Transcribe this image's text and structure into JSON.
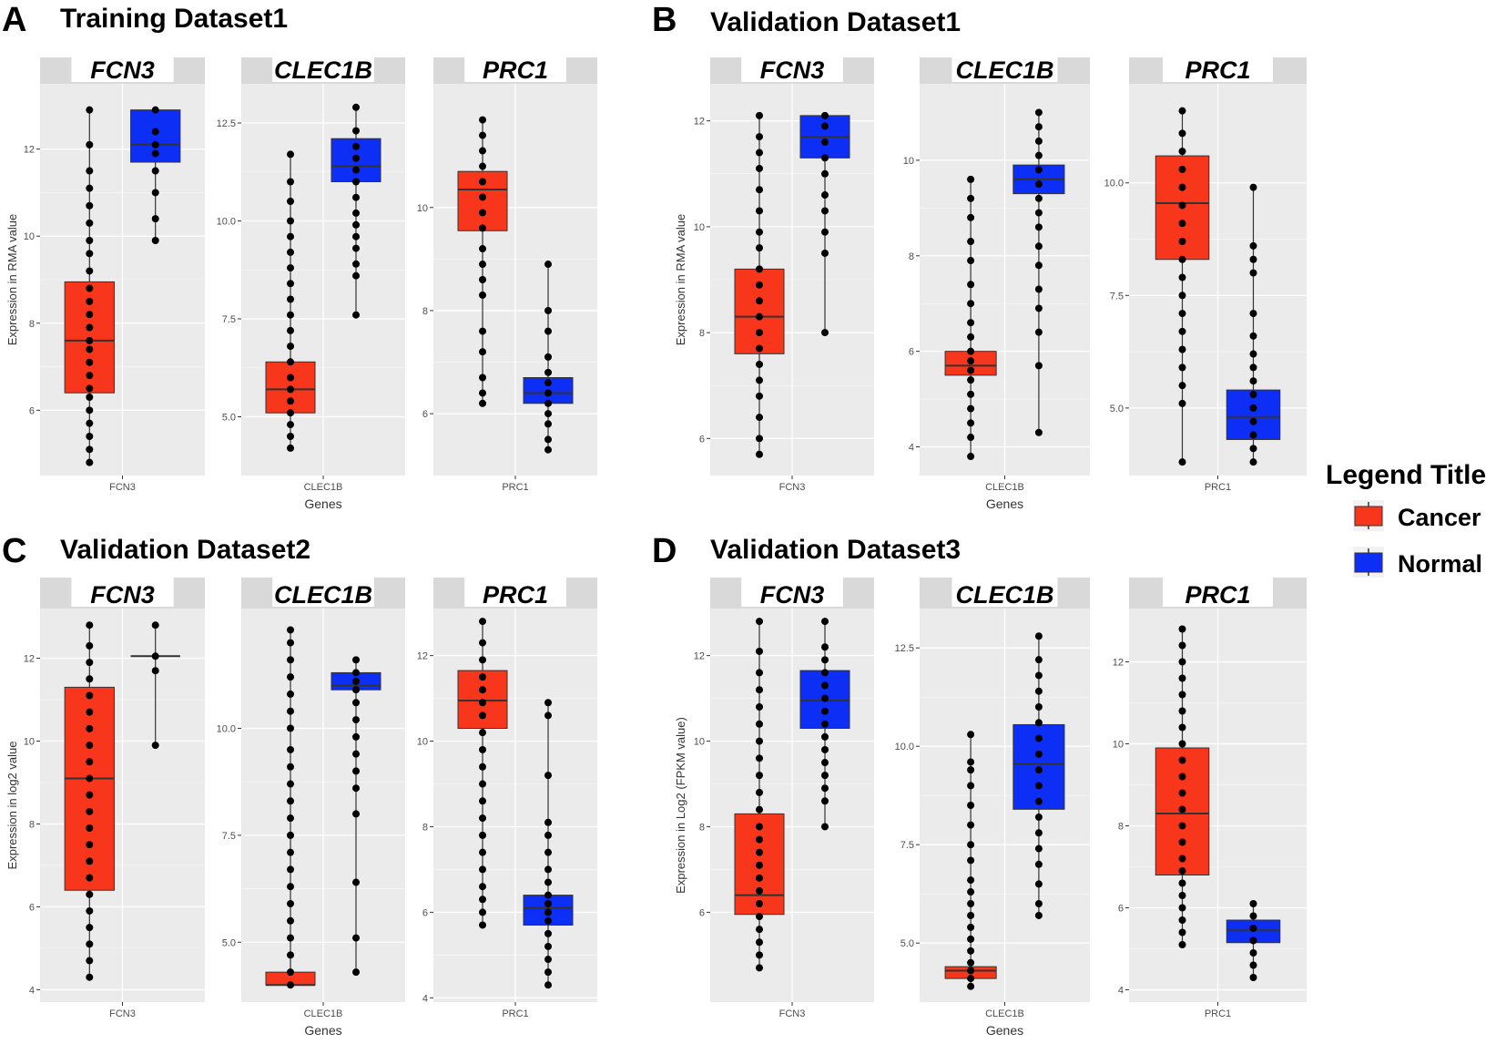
{
  "legend": {
    "title": "Legend Title",
    "items": [
      {
        "label": "Cancer",
        "color": "#f8361c"
      },
      {
        "label": "Normal",
        "color": "#0c2ef5"
      }
    ]
  },
  "colors": {
    "panel_bg": "#ebebeb",
    "strip_bg": "#d9d9d9",
    "grid": "#ffffff",
    "whisker": "#333333",
    "point": "#000000"
  },
  "panels": [
    {
      "letter": "A",
      "title": "Training Dataset1",
      "ylabel": "Expression in RMA value",
      "xlabel": "Genes"
    },
    {
      "letter": "B",
      "title": "Validation Dataset1",
      "ylabel": "Expression in RMA value",
      "xlabel": "Genes"
    },
    {
      "letter": "C",
      "title": "Validation Dataset2",
      "ylabel": "Expression in log2 value",
      "xlabel": "Genes"
    },
    {
      "letter": "D",
      "title": "Validation Dataset3",
      "ylabel": "Expression in Log2 (FPKM value)",
      "xlabel": "Genes"
    }
  ],
  "chart_data": [
    {
      "type": "box",
      "panel": "A",
      "title": "Training Dataset1",
      "ylabel": "Expression in RMA value",
      "xlabel": "Genes",
      "genes": [
        {
          "name": "FCN3",
          "ylim": [
            4.5,
            13.5
          ],
          "ticks": [
            6,
            8,
            10,
            12
          ],
          "tick_labels": [
            "6",
            "8",
            "10",
            "12"
          ],
          "cancer": {
            "q1": 6.4,
            "median": 7.6,
            "q3": 8.95,
            "min": 4.8,
            "max": 12.9,
            "points": [
              4.8,
              5.1,
              5.4,
              5.7,
              6.0,
              6.3,
              6.5,
              6.8,
              7.1,
              7.4,
              7.6,
              7.9,
              8.2,
              8.5,
              8.8,
              9.2,
              9.6,
              9.9,
              10.3,
              10.7,
              11.1,
              11.5,
              12.1,
              12.9
            ]
          },
          "normal": {
            "q1": 11.7,
            "median": 12.1,
            "q3": 12.9,
            "min": 9.9,
            "max": 12.9,
            "points": [
              9.9,
              10.4,
              11.0,
              11.5,
              11.9,
              12.1,
              12.4,
              12.9
            ]
          }
        },
        {
          "name": "CLEC1B",
          "ylim": [
            3.5,
            13.5
          ],
          "ticks": [
            5.0,
            7.5,
            10.0,
            12.5
          ],
          "tick_labels": [
            "5.0",
            "7.5",
            "10.0",
            "12.5"
          ],
          "cancer": {
            "q1": 5.1,
            "median": 5.7,
            "q3": 6.4,
            "min": 4.2,
            "max": 11.7,
            "points": [
              4.2,
              4.5,
              4.8,
              5.1,
              5.4,
              5.7,
              6.0,
              6.4,
              6.8,
              7.2,
              7.6,
              8.0,
              8.4,
              8.8,
              9.2,
              9.6,
              10.0,
              10.5,
              11.0,
              11.7
            ]
          },
          "normal": {
            "q1": 11.0,
            "median": 11.4,
            "q3": 12.1,
            "min": 7.6,
            "max": 12.9,
            "points": [
              7.6,
              8.6,
              8.9,
              9.3,
              9.6,
              9.9,
              10.2,
              10.6,
              11.0,
              11.3,
              11.6,
              11.9,
              12.3,
              12.9
            ]
          }
        },
        {
          "name": "PRC1",
          "ylim": [
            4.8,
            12.4
          ],
          "ticks": [
            6,
            8,
            10
          ],
          "tick_labels": [
            "6",
            "8",
            "10"
          ],
          "cancer": {
            "q1": 9.55,
            "median": 10.35,
            "q3": 10.7,
            "min": 6.2,
            "max": 11.7,
            "points": [
              6.2,
              6.4,
              6.7,
              7.2,
              7.6,
              8.3,
              8.6,
              8.9,
              9.2,
              9.6,
              9.9,
              10.2,
              10.5,
              10.8,
              11.1,
              11.4,
              11.7
            ]
          },
          "normal": {
            "q1": 6.2,
            "median": 6.4,
            "q3": 6.7,
            "min": 5.3,
            "max": 8.9,
            "points": [
              5.3,
              5.5,
              5.8,
              6.0,
              6.2,
              6.4,
              6.6,
              6.8,
              7.1,
              7.6,
              8.0,
              8.9
            ]
          }
        }
      ]
    },
    {
      "type": "box",
      "panel": "B",
      "title": "Validation Dataset1",
      "ylabel": "Expression in RMA value",
      "xlabel": "Genes",
      "genes": [
        {
          "name": "FCN3",
          "ylim": [
            5.3,
            12.7
          ],
          "ticks": [
            6,
            8,
            10,
            12
          ],
          "tick_labels": [
            "6",
            "8",
            "10",
            "12"
          ],
          "cancer": {
            "q1": 7.6,
            "median": 8.3,
            "q3": 9.2,
            "min": 5.7,
            "max": 12.1,
            "points": [
              5.7,
              6.0,
              6.4,
              6.8,
              7.1,
              7.4,
              7.7,
              8.0,
              8.3,
              8.6,
              8.9,
              9.2,
              9.6,
              9.9,
              10.3,
              10.7,
              11.1,
              11.4,
              11.7,
              12.1
            ]
          },
          "normal": {
            "q1": 11.3,
            "median": 11.7,
            "q3": 12.1,
            "min": 8.0,
            "max": 12.1,
            "points": [
              8.0,
              9.5,
              9.9,
              10.3,
              10.6,
              11.0,
              11.3,
              11.6,
              11.9,
              12.1
            ]
          }
        },
        {
          "name": "CLEC1B",
          "ylim": [
            3.4,
            11.6
          ],
          "ticks": [
            4,
            6,
            8,
            10
          ],
          "tick_labels": [
            "4",
            "6",
            "8",
            "10"
          ],
          "cancer": {
            "q1": 5.5,
            "median": 5.7,
            "q3": 6.0,
            "min": 3.8,
            "max": 9.6,
            "points": [
              3.8,
              4.2,
              4.5,
              4.8,
              5.1,
              5.4,
              5.6,
              5.8,
              6.0,
              6.3,
              6.6,
              7.0,
              7.4,
              7.9,
              8.3,
              8.8,
              9.2,
              9.6
            ]
          },
          "normal": {
            "q1": 9.3,
            "median": 9.6,
            "q3": 9.9,
            "min": 4.3,
            "max": 11.0,
            "points": [
              4.3,
              5.7,
              6.4,
              6.9,
              7.3,
              7.8,
              8.2,
              8.6,
              8.9,
              9.2,
              9.5,
              9.8,
              10.1,
              10.4,
              10.7,
              11.0
            ]
          }
        },
        {
          "name": "PRC1",
          "ylim": [
            3.5,
            12.2
          ],
          "ticks": [
            5.0,
            7.5,
            10.0
          ],
          "tick_labels": [
            "5.0",
            "7.5",
            "10.0"
          ],
          "cancer": {
            "q1": 8.3,
            "median": 9.55,
            "q3": 10.6,
            "min": 3.8,
            "max": 11.6,
            "points": [
              3.8,
              5.1,
              5.5,
              5.9,
              6.3,
              6.7,
              7.1,
              7.5,
              7.9,
              8.3,
              8.7,
              9.1,
              9.5,
              9.9,
              10.3,
              10.7,
              11.1,
              11.6
            ]
          },
          "normal": {
            "q1": 4.3,
            "median": 4.8,
            "q3": 5.4,
            "min": 3.8,
            "max": 9.9,
            "points": [
              3.8,
              4.1,
              4.4,
              4.7,
              5.0,
              5.3,
              5.6,
              5.9,
              6.2,
              6.6,
              7.1,
              8.0,
              8.3,
              8.6,
              9.9
            ]
          }
        }
      ]
    },
    {
      "type": "box",
      "panel": "C",
      "title": "Validation Dataset2",
      "ylabel": "Expression in log2 value",
      "xlabel": "Genes",
      "genes": [
        {
          "name": "FCN3",
          "ylim": [
            3.7,
            13.2
          ],
          "ticks": [
            4,
            6,
            8,
            10,
            12
          ],
          "tick_labels": [
            "4",
            "6",
            "8",
            "10",
            "12"
          ],
          "cancer": {
            "q1": 6.4,
            "median": 9.1,
            "q3": 11.3,
            "min": 4.3,
            "max": 12.8,
            "points": [
              4.3,
              4.7,
              5.1,
              5.5,
              5.9,
              6.3,
              6.7,
              7.1,
              7.5,
              7.9,
              8.3,
              8.7,
              9.1,
              9.5,
              9.9,
              10.3,
              10.7,
              11.1,
              11.5,
              11.9,
              12.3,
              12.8
            ]
          },
          "normal": {
            "q1": 12.05,
            "median": 12.05,
            "q3": 12.05,
            "min": 9.9,
            "max": 12.8,
            "points": [
              9.9,
              11.7,
              12.05,
              12.8
            ]
          }
        },
        {
          "name": "CLEC1B",
          "ylim": [
            3.6,
            12.8
          ],
          "ticks": [
            5.0,
            7.5,
            10.0
          ],
          "tick_labels": [
            "5.0",
            "7.5",
            "10.0"
          ],
          "cancer": {
            "q1": 4.0,
            "median": 4.0,
            "q3": 4.3,
            "min": 4.0,
            "max": 12.3,
            "points": [
              4.0,
              4.3,
              4.7,
              5.1,
              5.5,
              5.9,
              6.3,
              6.7,
              7.1,
              7.5,
              7.9,
              8.3,
              8.7,
              9.1,
              9.5,
              10.0,
              10.4,
              10.8,
              11.2,
              11.6,
              12.0,
              12.3
            ]
          },
          "normal": {
            "q1": 10.9,
            "median": 11.0,
            "q3": 11.3,
            "min": 4.3,
            "max": 11.6,
            "points": [
              4.3,
              5.1,
              6.4,
              8.0,
              8.6,
              9.0,
              9.4,
              9.8,
              10.2,
              10.6,
              10.9,
              11.1,
              11.3,
              11.6
            ]
          }
        },
        {
          "name": "PRC1",
          "ylim": [
            3.9,
            13.1
          ],
          "ticks": [
            4,
            6,
            8,
            10,
            12
          ],
          "tick_labels": [
            "4",
            "6",
            "8",
            "10",
            "12"
          ],
          "cancer": {
            "q1": 10.3,
            "median": 10.95,
            "q3": 11.65,
            "min": 5.7,
            "max": 12.8,
            "points": [
              5.7,
              6.0,
              6.3,
              6.6,
              7.0,
              7.4,
              7.8,
              8.2,
              8.6,
              9.0,
              9.4,
              9.8,
              10.2,
              10.6,
              10.9,
              11.2,
              11.5,
              11.9,
              12.3,
              12.8
            ]
          },
          "normal": {
            "q1": 5.7,
            "median": 6.1,
            "q3": 6.4,
            "min": 4.3,
            "max": 10.9,
            "points": [
              4.3,
              4.6,
              4.9,
              5.2,
              5.5,
              5.8,
              6.0,
              6.2,
              6.4,
              6.7,
              7.0,
              7.4,
              7.8,
              8.1,
              9.2,
              10.6,
              10.9
            ]
          }
        }
      ]
    },
    {
      "type": "box",
      "panel": "D",
      "title": "Validation Dataset3",
      "ylabel": "Expression in Log2 (FPKM value)",
      "xlabel": "Genes",
      "genes": [
        {
          "name": "FCN3",
          "ylim": [
            3.9,
            13.1
          ],
          "ticks": [
            6,
            8,
            10,
            12
          ],
          "tick_labels": [
            "6",
            "8",
            "10",
            "12"
          ],
          "cancer": {
            "q1": 5.95,
            "median": 6.4,
            "q3": 8.3,
            "min": 4.7,
            "max": 12.8,
            "points": [
              4.7,
              5.0,
              5.3,
              5.6,
              5.9,
              6.2,
              6.5,
              6.8,
              7.1,
              7.4,
              7.7,
              8.0,
              8.4,
              8.8,
              9.2,
              9.6,
              10.0,
              10.4,
              10.8,
              11.2,
              11.6,
              12.1,
              12.8
            ]
          },
          "normal": {
            "q1": 10.3,
            "median": 10.95,
            "q3": 11.65,
            "min": 8.0,
            "max": 12.8,
            "points": [
              8.0,
              8.6,
              8.9,
              9.2,
              9.5,
              9.8,
              10.1,
              10.4,
              10.7,
              11.0,
              11.3,
              11.6,
              11.9,
              12.2,
              12.8
            ]
          }
        },
        {
          "name": "CLEC1B",
          "ylim": [
            3.5,
            13.5
          ],
          "ticks": [
            5.0,
            7.5,
            10.0,
            12.5
          ],
          "tick_labels": [
            "5.0",
            "7.5",
            "10.0",
            "12.5"
          ],
          "cancer": {
            "q1": 4.1,
            "median": 4.3,
            "q3": 4.4,
            "min": 3.9,
            "max": 10.3,
            "points": [
              3.9,
              4.1,
              4.3,
              4.5,
              4.8,
              5.1,
              5.4,
              5.7,
              6.0,
              6.3,
              6.6,
              7.1,
              7.5,
              8.0,
              8.5,
              9.0,
              9.4,
              9.6,
              10.3
            ]
          },
          "normal": {
            "q1": 8.4,
            "median": 9.55,
            "q3": 10.55,
            "min": 5.7,
            "max": 12.8,
            "points": [
              5.7,
              6.0,
              6.5,
              7.0,
              7.4,
              7.8,
              8.2,
              8.6,
              9.0,
              9.4,
              9.8,
              10.2,
              10.6,
              11.0,
              11.4,
              11.8,
              12.2,
              12.8
            ]
          }
        },
        {
          "name": "PRC1",
          "ylim": [
            3.7,
            13.3
          ],
          "ticks": [
            4,
            6,
            8,
            10,
            12
          ],
          "tick_labels": [
            "4",
            "6",
            "8",
            "10",
            "12"
          ],
          "cancer": {
            "q1": 6.8,
            "median": 8.3,
            "q3": 9.9,
            "min": 5.1,
            "max": 12.8,
            "points": [
              5.1,
              5.4,
              5.7,
              6.0,
              6.3,
              6.6,
              6.9,
              7.2,
              7.6,
              8.0,
              8.4,
              8.8,
              9.2,
              9.6,
              10.0,
              10.4,
              10.8,
              11.2,
              11.6,
              12.0,
              12.4,
              12.8
            ]
          },
          "normal": {
            "q1": 5.15,
            "median": 5.45,
            "q3": 5.7,
            "min": 4.3,
            "max": 6.1,
            "points": [
              4.3,
              4.6,
              4.9,
              5.2,
              5.5,
              5.8,
              6.1
            ]
          }
        }
      ]
    }
  ]
}
